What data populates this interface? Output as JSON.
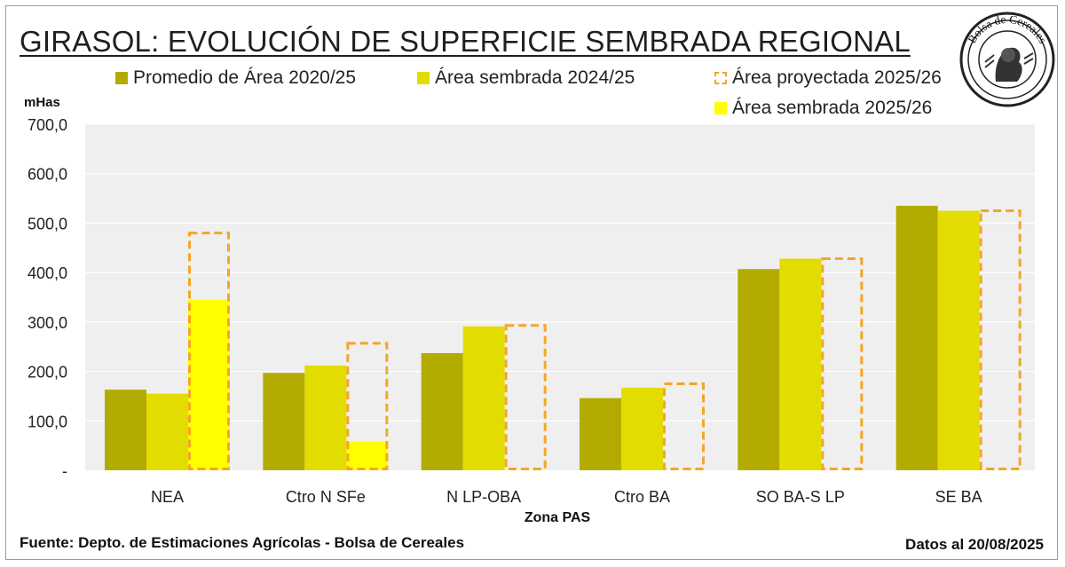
{
  "title": "GIRASOL: EVOLUCIÓN DE SUPERFICIE SEMBRADA REGIONAL",
  "logo_text": "Bolsa de Cereales",
  "footer": {
    "source": "Fuente: Depto. de Estimaciones Agrícolas - Bolsa de Cereales",
    "date": "Datos al 20/08/2025"
  },
  "colors": {
    "prom": "#b3ab00",
    "s2425": "#e2dc00",
    "proj": "#f5a623",
    "s2526": "#ffff00",
    "plot_bg": "#efefef"
  },
  "chart_data": {
    "type": "bar",
    "ylabel": "mHas",
    "xlabel": "Zona PAS",
    "ylim": [
      0,
      700
    ],
    "yticks": [
      "-",
      "100,0",
      "200,0",
      "300,0",
      "400,0",
      "500,0",
      "600,0",
      "700,0"
    ],
    "categories": [
      "NEA",
      "Ctro N SFe",
      "N LP-OBA",
      "Ctro BA",
      "SO BA-S LP",
      "SE BA"
    ],
    "series": [
      {
        "name": "Promedio de Área 2020/25",
        "values": [
          163,
          197,
          237,
          146,
          407,
          535
        ]
      },
      {
        "name": "Área sembrada 2024/25",
        "values": [
          155,
          212,
          291,
          167,
          428,
          525
        ]
      },
      {
        "name": "Área proyectada 2025/26",
        "values": [
          480,
          257,
          293,
          175,
          428,
          525
        ]
      },
      {
        "name": "Área sembrada 2025/26",
        "values": [
          345,
          58,
          0,
          0,
          0,
          0
        ]
      }
    ],
    "legend_position": "top"
  }
}
